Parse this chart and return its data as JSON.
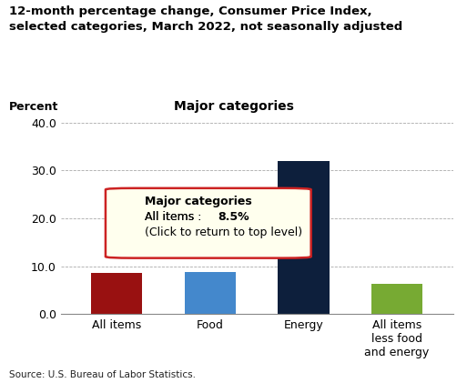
{
  "title": "12-month percentage change, Consumer Price Index,\nselected categories, March 2022, not seasonally adjusted",
  "subtitle": "Major categories",
  "ylabel": "Percent",
  "categories": [
    "All items",
    "Food",
    "Energy",
    "All items\nless food\nand energy"
  ],
  "values": [
    8.5,
    8.8,
    32.0,
    6.4
  ],
  "bar_colors": [
    "#991111",
    "#4488cc",
    "#0d1f3c",
    "#77aa33"
  ],
  "ylim": [
    0,
    40
  ],
  "yticks": [
    0.0,
    10.0,
    20.0,
    30.0,
    40.0
  ],
  "source": "Source: U.S. Bureau of Labor Statistics.",
  "tooltip_title": "Major categories",
  "tooltip_line1_pre": "All items : ",
  "tooltip_line1_bold": "8.5%",
  "tooltip_line2": "(Click to return to top level)",
  "tooltip_bg": "#ffffee",
  "tooltip_border": "#cc2222",
  "background_color": "#ffffff",
  "grid_color": "#aaaaaa"
}
